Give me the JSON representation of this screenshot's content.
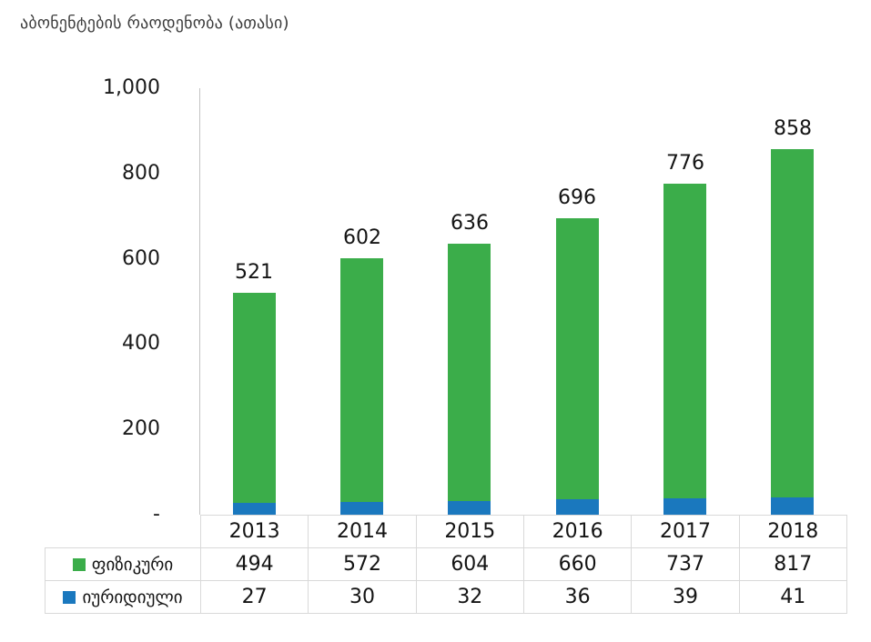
{
  "title": "აბონენტების რაოდენობა (ათასი)",
  "colors": {
    "physical": "#3bad4a",
    "juridical": "#1a78be",
    "border": "#d9d9d9",
    "axis": "#c3c3c3",
    "text": "#141414"
  },
  "chart_data": {
    "type": "bar",
    "stacked": true,
    "title": "აბონენტების რაოდენობა (ათასი)",
    "categories": [
      "2013",
      "2014",
      "2015",
      "2016",
      "2017",
      "2018"
    ],
    "series": [
      {
        "name": "ფიზიკური",
        "color_key": "physical",
        "values": [
          494,
          572,
          604,
          660,
          737,
          817
        ]
      },
      {
        "name": "იურიდიული",
        "color_key": "juridical",
        "values": [
          27,
          30,
          32,
          36,
          39,
          41
        ]
      }
    ],
    "totals": [
      521,
      602,
      636,
      696,
      776,
      858
    ],
    "xlabel": "",
    "ylabel": "",
    "ylim": [
      0,
      1000
    ],
    "y_ticks": [
      {
        "value": 1000,
        "label": "1,000"
      },
      {
        "value": 800,
        "label": "800"
      },
      {
        "value": 600,
        "label": "600"
      },
      {
        "value": 400,
        "label": "400"
      },
      {
        "value": 200,
        "label": "200"
      },
      {
        "value": 0,
        "label": "-"
      }
    ],
    "grid": false,
    "legend_position": "table-left"
  }
}
